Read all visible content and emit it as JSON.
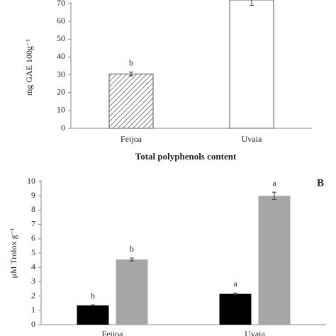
{
  "chart_data": [
    {
      "type": "bar",
      "y_label": "mg GAE 100g⁻¹",
      "x_label": "Total polyphenols content",
      "categories": [
        "Feijoa",
        "Uvaia"
      ],
      "values": [
        30.5,
        72
      ],
      "errors": [
        1,
        3
      ],
      "letters": [
        "b",
        ""
      ],
      "patterns": [
        "hatched",
        "none"
      ],
      "color": "#555555",
      "ylim": [
        0,
        70
      ],
      "yticks": [
        0,
        10,
        20,
        30,
        40,
        50,
        60,
        70
      ]
    },
    {
      "type": "grouped_bar",
      "panel_label": "B",
      "y_label": "μM Trolox g⁻¹",
      "categories": [
        "Feijoa",
        "Uvaia"
      ],
      "series": [
        {
          "color": "#000000",
          "values": [
            1.35,
            2.15
          ],
          "errors": [
            0.03,
            0.06
          ],
          "letters": [
            "b",
            "a"
          ]
        },
        {
          "color": "#a6a6a6",
          "values": [
            4.55,
            9.0
          ],
          "errors": [
            0.1,
            0.25
          ],
          "letters": [
            "b",
            "a"
          ]
        }
      ],
      "ylim": [
        0,
        10
      ],
      "yticks": [
        0,
        1,
        2,
        3,
        4,
        5,
        6,
        7,
        8,
        9,
        10
      ]
    }
  ]
}
